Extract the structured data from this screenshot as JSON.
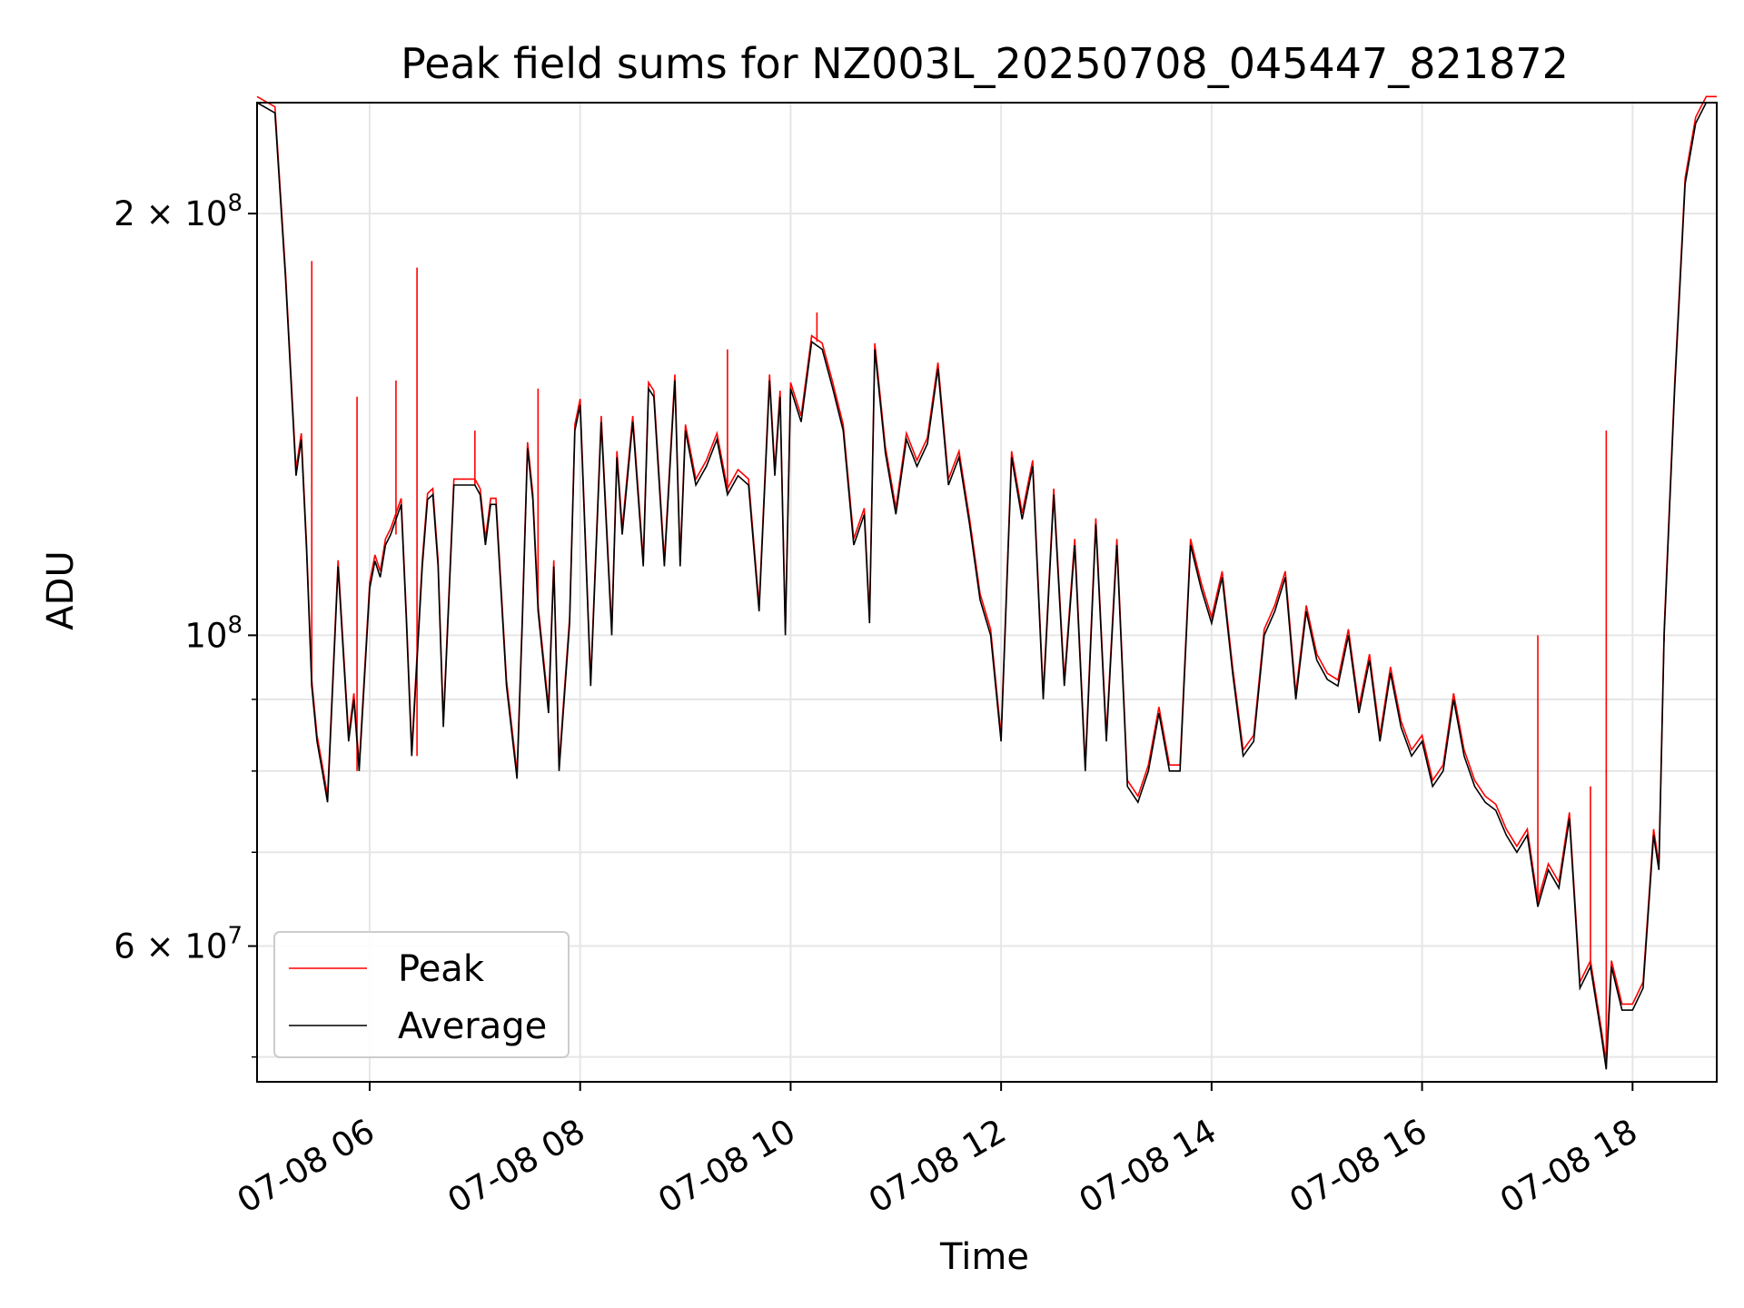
{
  "chart_data": {
    "type": "line",
    "title": "Peak field sums for NZ003L_20250708_045447_821872",
    "xlabel": "Time",
    "ylabel": "ADU",
    "y_scale": "log",
    "ylim": [
      48000000,
      240000000
    ],
    "xlim_hours": [
      4.93,
      18.8
    ],
    "x_ticks": [
      {
        "value": 6,
        "label": "07-08 06"
      },
      {
        "value": 8,
        "label": "07-08 08"
      },
      {
        "value": 10,
        "label": "07-08 10"
      },
      {
        "value": 12,
        "label": "07-08 12"
      },
      {
        "value": 14,
        "label": "07-08 14"
      },
      {
        "value": 16,
        "label": "07-08 16"
      },
      {
        "value": 18,
        "label": "07-08 18"
      }
    ],
    "y_major_ticks": [
      {
        "value": 60000000,
        "mantissa": "6",
        "exp": "7"
      },
      {
        "value": 100000000,
        "mantissa": "",
        "exp": "8"
      },
      {
        "value": 200000000,
        "mantissa": "2",
        "exp": "8"
      }
    ],
    "y_minor_ticks": [
      50000000,
      70000000,
      80000000,
      90000000
    ],
    "grid": true,
    "legend_position": "lower-left",
    "series": [
      {
        "name": "Peak",
        "color": "#ff0000"
      },
      {
        "name": "Average",
        "color": "#000000"
      }
    ],
    "time_hours": [
      4.93,
      5.1,
      5.2,
      5.3,
      5.35,
      5.4,
      5.45,
      5.5,
      5.55,
      5.6,
      5.7,
      5.8,
      5.85,
      5.9,
      6.0,
      6.05,
      6.1,
      6.15,
      6.2,
      6.3,
      6.35,
      6.4,
      6.5,
      6.55,
      6.6,
      6.65,
      6.7,
      6.8,
      6.9,
      7.0,
      7.05,
      7.1,
      7.15,
      7.2,
      7.3,
      7.4,
      7.45,
      7.5,
      7.55,
      7.6,
      7.7,
      7.75,
      7.8,
      7.9,
      7.95,
      8.0,
      8.1,
      8.2,
      8.3,
      8.35,
      8.4,
      8.5,
      8.6,
      8.65,
      8.7,
      8.8,
      8.9,
      8.95,
      9.0,
      9.1,
      9.2,
      9.3,
      9.4,
      9.5,
      9.6,
      9.7,
      9.8,
      9.85,
      9.9,
      9.95,
      10.0,
      10.1,
      10.2,
      10.3,
      10.4,
      10.5,
      10.6,
      10.7,
      10.75,
      10.8,
      10.9,
      11.0,
      11.1,
      11.2,
      11.3,
      11.4,
      11.5,
      11.6,
      11.7,
      11.8,
      11.9,
      12.0,
      12.1,
      12.2,
      12.3,
      12.4,
      12.5,
      12.6,
      12.7,
      12.8,
      12.9,
      13.0,
      13.1,
      13.2,
      13.3,
      13.4,
      13.5,
      13.6,
      13.7,
      13.8,
      13.9,
      14.0,
      14.1,
      14.2,
      14.3,
      14.4,
      14.5,
      14.6,
      14.7,
      14.8,
      14.9,
      15.0,
      15.1,
      15.2,
      15.3,
      15.4,
      15.5,
      15.6,
      15.7,
      15.8,
      15.9,
      16.0,
      16.1,
      16.2,
      16.3,
      16.4,
      16.5,
      16.6,
      16.7,
      16.8,
      16.9,
      17.0,
      17.1,
      17.2,
      17.3,
      17.4,
      17.5,
      17.6,
      17.7,
      17.75,
      17.8,
      17.9,
      18.0,
      18.1,
      18.2,
      18.25,
      18.3,
      18.4,
      18.5,
      18.6,
      18.7,
      18.8
    ],
    "average": [
      240000000,
      236000000,
      180000000,
      130000000,
      138000000,
      115000000,
      92000000,
      84000000,
      80000000,
      76000000,
      112000000,
      84000000,
      90000000,
      80000000,
      108000000,
      113000000,
      110000000,
      116000000,
      118000000,
      124000000,
      102000000,
      82000000,
      112000000,
      125000000,
      126000000,
      112000000,
      86000000,
      128000000,
      128000000,
      128000000,
      126000000,
      116000000,
      124000000,
      124000000,
      92000000,
      79000000,
      102000000,
      136000000,
      125000000,
      104000000,
      88000000,
      112000000,
      80000000,
      102000000,
      140000000,
      146000000,
      92000000,
      142000000,
      100000000,
      134000000,
      118000000,
      142000000,
      112000000,
      150000000,
      148000000,
      112000000,
      152000000,
      112000000,
      140000000,
      128000000,
      132000000,
      138000000,
      126000000,
      130000000,
      128000000,
      104000000,
      152000000,
      130000000,
      148000000,
      100000000,
      150000000,
      142000000,
      162000000,
      160000000,
      150000000,
      140000000,
      116000000,
      122000000,
      102000000,
      160000000,
      135000000,
      122000000,
      138000000,
      132000000,
      137000000,
      155000000,
      128000000,
      134000000,
      120000000,
      106000000,
      100000000,
      84000000,
      134000000,
      121000000,
      132000000,
      90000000,
      126000000,
      92000000,
      116000000,
      80000000,
      120000000,
      84000000,
      116000000,
      78000000,
      76000000,
      80000000,
      88000000,
      80000000,
      80000000,
      116000000,
      108000000,
      102000000,
      110000000,
      94000000,
      82000000,
      84000000,
      100000000,
      104000000,
      110000000,
      90000000,
      104000000,
      96000000,
      93000000,
      92000000,
      100000000,
      88000000,
      96000000,
      84000000,
      94000000,
      86000000,
      82000000,
      84000000,
      78000000,
      80000000,
      90000000,
      82000000,
      78000000,
      76000000,
      75000000,
      72000000,
      70000000,
      72000000,
      64000000,
      68000000,
      66000000,
      74000000,
      56000000,
      58000000,
      52000000,
      49000000,
      58000000,
      54000000,
      54000000,
      56000000,
      72000000,
      68000000,
      100000000,
      150000000,
      210000000,
      232000000,
      240000000,
      240000000
    ],
    "peak_spikes": [
      {
        "time": 5.45,
        "peak": 185000000
      },
      {
        "time": 5.88,
        "peak": 148000000
      },
      {
        "time": 6.25,
        "peak": 152000000
      },
      {
        "time": 6.45,
        "peak": 183000000
      },
      {
        "time": 7.0,
        "peak": 140000000
      },
      {
        "time": 7.6,
        "peak": 150000000
      },
      {
        "time": 9.4,
        "peak": 160000000
      },
      {
        "time": 10.25,
        "peak": 170000000
      },
      {
        "time": 17.75,
        "peak": 140000000
      },
      {
        "time": 17.1,
        "peak": 100000000
      },
      {
        "time": 17.6,
        "peak": 78000000
      },
      {
        "time": 18.3,
        "peak": 99000000
      }
    ]
  }
}
